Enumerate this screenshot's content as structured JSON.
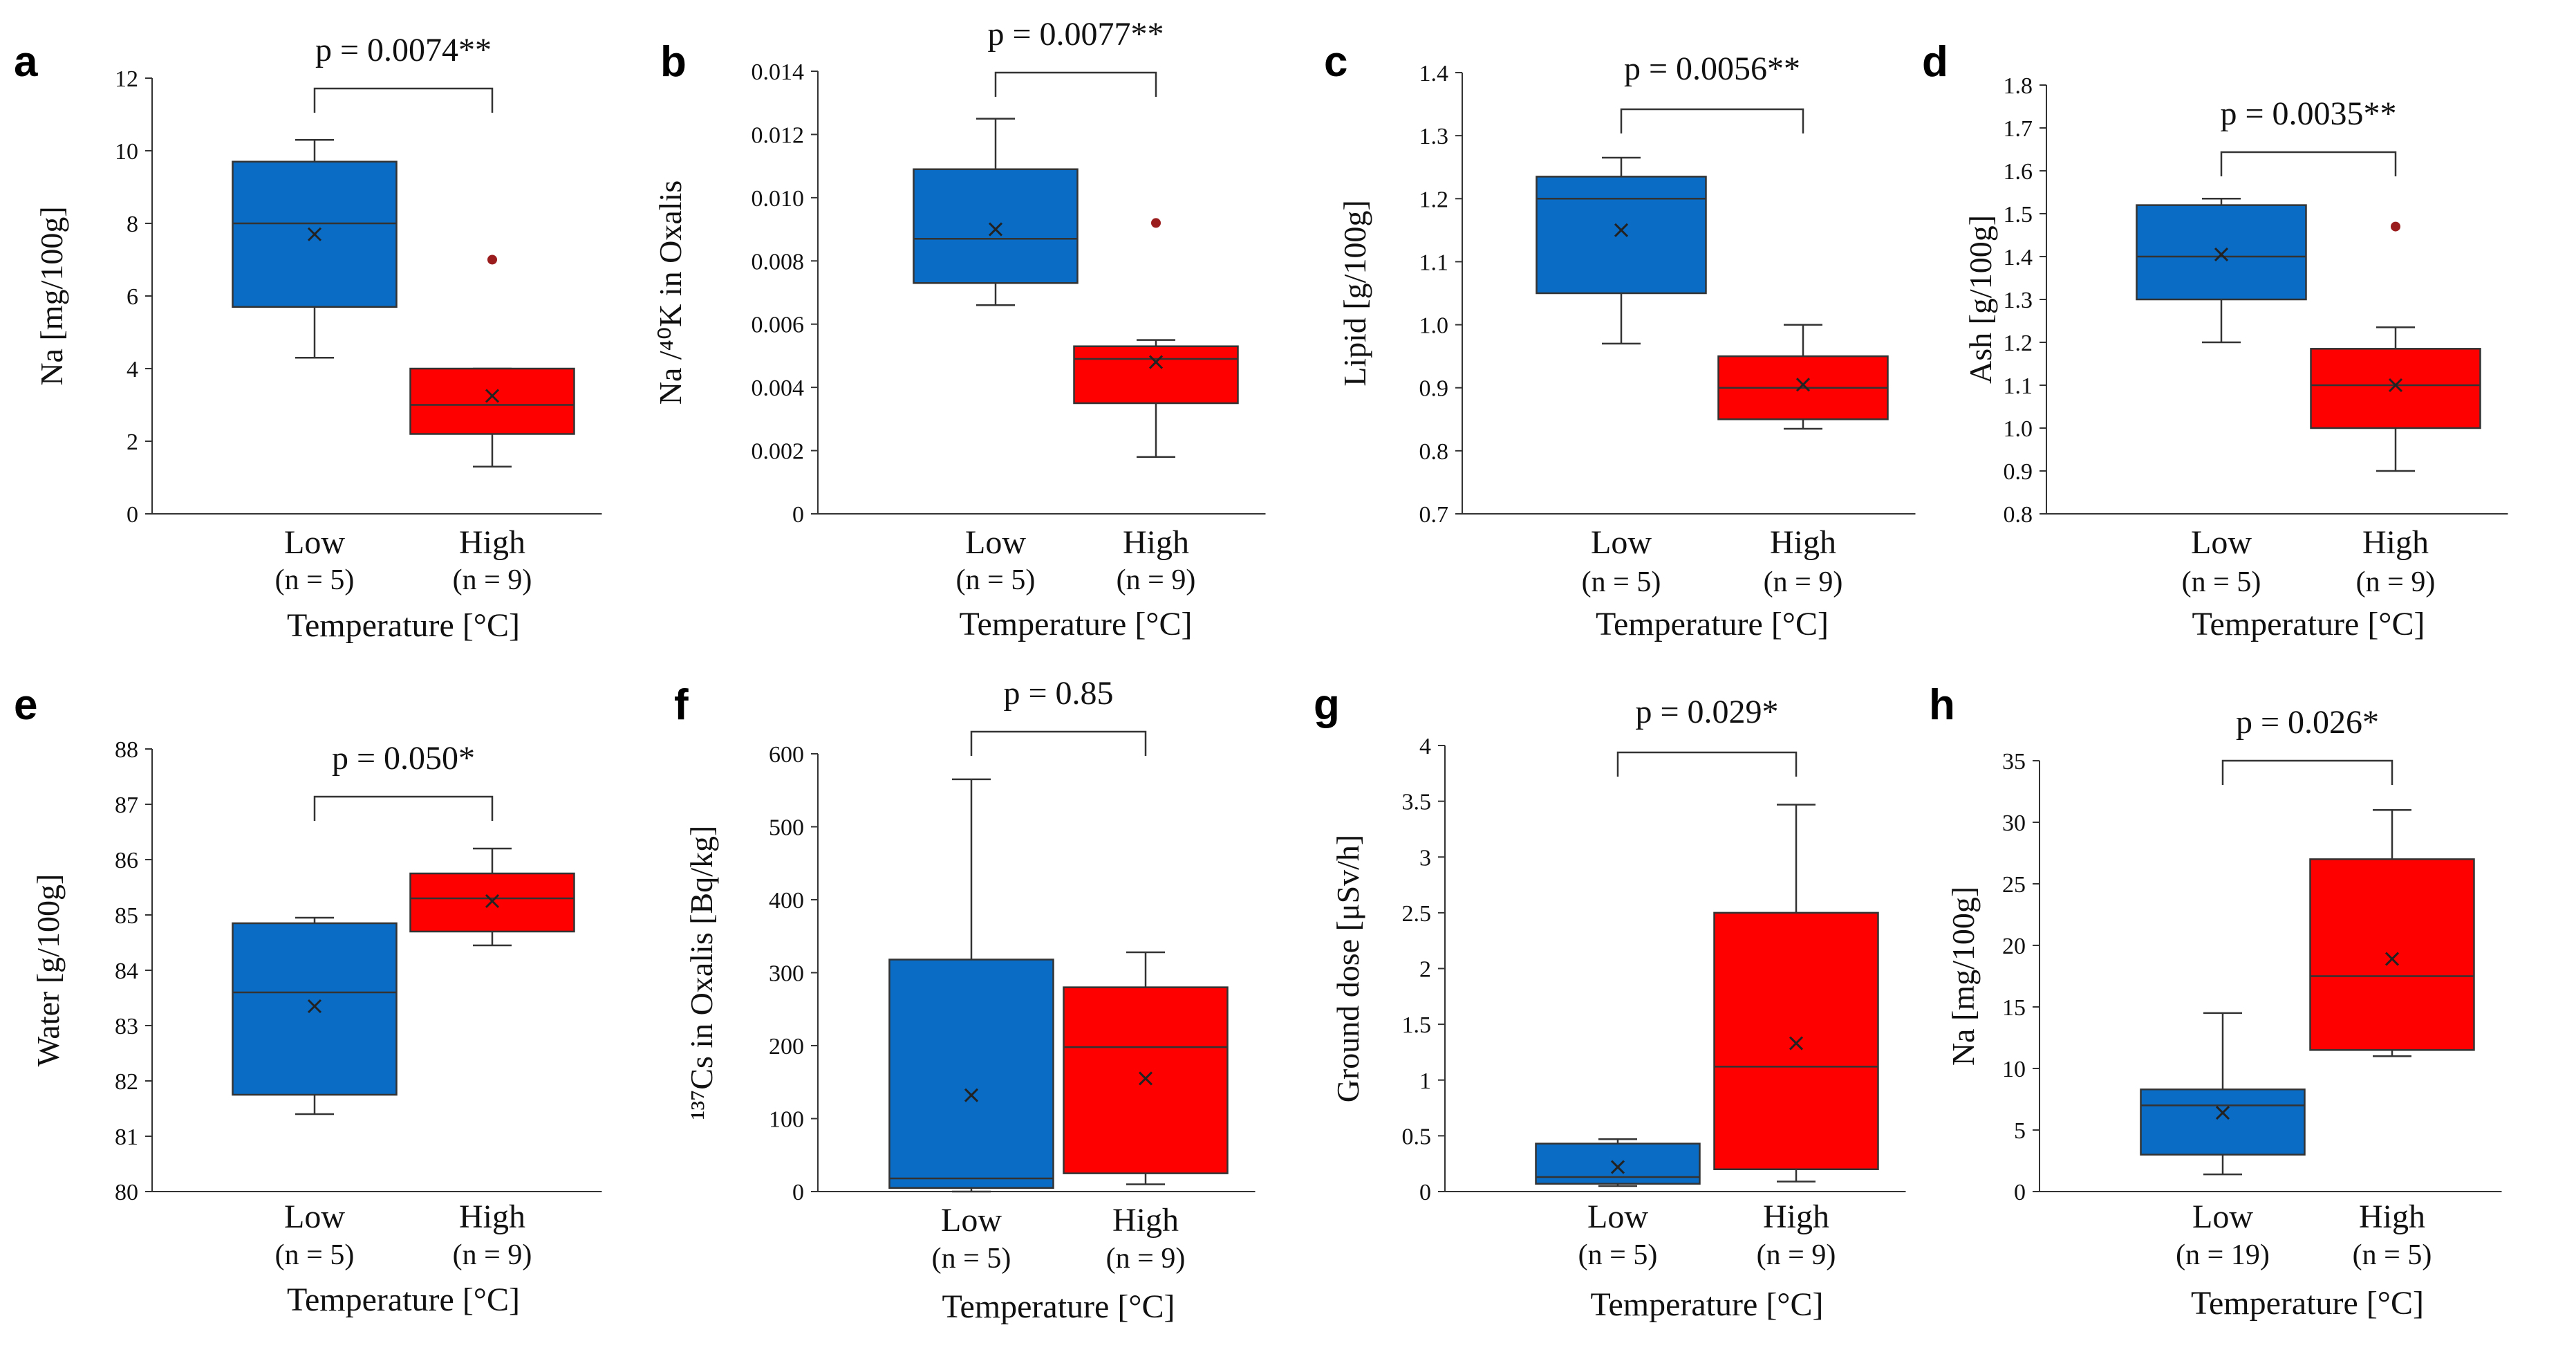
{
  "colors": {
    "low": "#0a6cc4",
    "high": "#ff0000",
    "outlier": "#9b1c1c"
  },
  "chart_data": [
    {
      "id": "a",
      "letter": "a",
      "type": "box",
      "ylabel_html": "Na [mg/100g]",
      "xlabel": "Temperature [°C]",
      "ylim": [
        0,
        12
      ],
      "yticks": [
        "0",
        "2",
        "4",
        "6",
        "8",
        "10",
        "12"
      ],
      "ytick_values": [
        0,
        2,
        4,
        6,
        8,
        10,
        12
      ],
      "p_value": "p = 0.0074**",
      "groups": [
        {
          "name": "Low",
          "n_label": "(n = 5)",
          "color": "low",
          "min": 4.3,
          "q1": 5.7,
          "median": 8.0,
          "q3": 9.7,
          "max": 10.3,
          "mean": 7.7,
          "outliers": []
        },
        {
          "name": "High",
          "n_label": "(n = 9)",
          "color": "high",
          "min": 1.3,
          "q1": 2.2,
          "median": 3.0,
          "q3": 4.0,
          "max": 4.0,
          "mean": 3.25,
          "outliers": [
            7.0
          ]
        }
      ]
    },
    {
      "id": "b",
      "letter": "b",
      "type": "box",
      "ylabel_html": "Na /⁴⁰K in Oxalis",
      "xlabel": "Temperature [°C]",
      "ylim": [
        0,
        0.014
      ],
      "yticks": [
        "0",
        "0.002",
        "0.004",
        "0.006",
        "0.008",
        "0.010",
        "0.012",
        "0.014"
      ],
      "ytick_values": [
        0,
        0.002,
        0.004,
        0.006,
        0.008,
        0.01,
        0.012,
        0.014
      ],
      "p_value": "p = 0.0077**",
      "groups": [
        {
          "name": "Low",
          "n_label": "(n = 5)",
          "color": "low",
          "min": 0.0066,
          "q1": 0.0073,
          "median": 0.0087,
          "q3": 0.0109,
          "max": 0.0125,
          "mean": 0.009,
          "outliers": []
        },
        {
          "name": "High",
          "n_label": "(n = 9)",
          "color": "high",
          "min": 0.0018,
          "q1": 0.0035,
          "median": 0.0049,
          "q3": 0.0053,
          "max": 0.0055,
          "mean": 0.0048,
          "outliers": [
            0.0092
          ]
        }
      ]
    },
    {
      "id": "c",
      "letter": "c",
      "type": "box",
      "ylabel_html": "Lipid [g/100g]",
      "xlabel": "Temperature [°C]",
      "ylim": [
        0.7,
        1.4
      ],
      "yticks": [
        "0.7",
        "0.8",
        "0.9",
        "1.0",
        "1.1",
        "1.2",
        "1.3",
        "1.4"
      ],
      "ytick_values": [
        0.7,
        0.8,
        0.9,
        1.0,
        1.1,
        1.2,
        1.3,
        1.4
      ],
      "p_value": "p = 0.0056**",
      "groups": [
        {
          "name": "Low",
          "n_label": "(n = 5)",
          "color": "low",
          "min": 0.97,
          "q1": 1.05,
          "median": 1.2,
          "q3": 1.235,
          "max": 1.265,
          "mean": 1.15,
          "outliers": []
        },
        {
          "name": "High",
          "n_label": "(n = 9)",
          "color": "high",
          "min": 0.835,
          "q1": 0.85,
          "median": 0.9,
          "q3": 0.95,
          "max": 1.0,
          "mean": 0.905,
          "outliers": []
        }
      ]
    },
    {
      "id": "d",
      "letter": "d",
      "type": "box",
      "ylabel_html": "Ash [g/100g]",
      "xlabel": "Temperature [°C]",
      "ylim": [
        0.8,
        1.8
      ],
      "yticks": [
        "0.8",
        "0.9",
        "1.0",
        "1.1",
        "1.2",
        "1.3",
        "1.4",
        "1.5",
        "1.6",
        "1.7",
        "1.8"
      ],
      "ytick_values": [
        0.8,
        0.9,
        1.0,
        1.1,
        1.2,
        1.3,
        1.4,
        1.5,
        1.6,
        1.7,
        1.8
      ],
      "p_value": "p = 0.0035**",
      "groups": [
        {
          "name": "Low",
          "n_label": "(n = 5)",
          "color": "low",
          "min": 1.2,
          "q1": 1.3,
          "median": 1.4,
          "q3": 1.52,
          "max": 1.535,
          "mean": 1.405,
          "outliers": []
        },
        {
          "name": "High",
          "n_label": "(n = 9)",
          "color": "high",
          "min": 0.9,
          "q1": 1.0,
          "median": 1.1,
          "q3": 1.185,
          "max": 1.235,
          "mean": 1.1,
          "outliers": [
            1.47
          ]
        }
      ]
    },
    {
      "id": "e",
      "letter": "e",
      "type": "box",
      "ylabel_html": "Water [g/100g]",
      "xlabel": "Temperature [°C]",
      "ylim": [
        80,
        88
      ],
      "yticks": [
        "80",
        "81",
        "82",
        "83",
        "84",
        "85",
        "86",
        "87",
        "88"
      ],
      "ytick_values": [
        80,
        81,
        82,
        83,
        84,
        85,
        86,
        87,
        88
      ],
      "p_value": "p = 0.050*",
      "groups": [
        {
          "name": "Low",
          "n_label": "(n = 5)",
          "color": "low",
          "min": 81.4,
          "q1": 81.75,
          "median": 83.6,
          "q3": 84.85,
          "max": 84.95,
          "mean": 83.35,
          "outliers": []
        },
        {
          "name": "High",
          "n_label": "(n = 9)",
          "color": "high",
          "min": 84.45,
          "q1": 84.7,
          "median": 85.3,
          "q3": 85.75,
          "max": 86.2,
          "mean": 85.25,
          "outliers": []
        }
      ]
    },
    {
      "id": "f",
      "letter": "f",
      "type": "box",
      "ylabel_html": "¹³⁷Cs in Oxalis [Bq/kg]",
      "xlabel": "Temperature [°C]",
      "ylim": [
        0,
        600
      ],
      "yticks": [
        "0",
        "100",
        "200",
        "300",
        "400",
        "500",
        "600"
      ],
      "ytick_values": [
        0,
        100,
        200,
        300,
        400,
        500,
        600
      ],
      "p_value": "p = 0.85",
      "groups": [
        {
          "name": "Low",
          "n_label": "(n = 5)",
          "color": "low",
          "min": 0,
          "q1": 5,
          "median": 18,
          "q3": 318,
          "max": 565,
          "mean": 132,
          "outliers": []
        },
        {
          "name": "High",
          "n_label": "(n = 9)",
          "color": "high",
          "min": 10,
          "q1": 25,
          "median": 198,
          "q3": 280,
          "max": 328,
          "mean": 155,
          "outliers": []
        }
      ]
    },
    {
      "id": "g",
      "letter": "g",
      "type": "box",
      "ylabel_html": "Ground dose [μSv/h]",
      "xlabel": "Temperature [°C]",
      "ylim": [
        0,
        4
      ],
      "yticks": [
        "0",
        "0.5",
        "1",
        "1.5",
        "2",
        "2.5",
        "3",
        "3.5",
        "4"
      ],
      "ytick_values": [
        0,
        0.5,
        1,
        1.5,
        2,
        2.5,
        3,
        3.5,
        4
      ],
      "p_value": "p = 0.029*",
      "groups": [
        {
          "name": "Low",
          "n_label": "(n = 5)",
          "color": "low",
          "min": 0.05,
          "q1": 0.07,
          "median": 0.13,
          "q3": 0.43,
          "max": 0.47,
          "mean": 0.22,
          "outliers": []
        },
        {
          "name": "High",
          "n_label": "(n = 9)",
          "color": "high",
          "min": 0.09,
          "q1": 0.2,
          "median": 1.12,
          "q3": 2.5,
          "max": 3.47,
          "mean": 1.33,
          "outliers": []
        }
      ]
    },
    {
      "id": "h",
      "letter": "h",
      "type": "box",
      "ylabel_html": "Na [mg/100g]",
      "xlabel": "Temperature [°C]",
      "ylim": [
        0,
        35
      ],
      "yticks": [
        "0",
        "5",
        "10",
        "15",
        "20",
        "25",
        "30",
        "35"
      ],
      "ytick_values": [
        0,
        5,
        10,
        15,
        20,
        25,
        30,
        35
      ],
      "p_value": "p = 0.026*",
      "groups": [
        {
          "name": "Low",
          "n_label": "(n = 19)",
          "color": "low",
          "min": 1.4,
          "q1": 3.0,
          "median": 7.0,
          "q3": 8.3,
          "max": 14.5,
          "mean": 6.4,
          "outliers": []
        },
        {
          "name": "High",
          "n_label": "(n = 5)",
          "color": "high",
          "min": 11.0,
          "q1": 11.5,
          "median": 17.5,
          "q3": 27.0,
          "max": 31.0,
          "mean": 18.9,
          "outliers": []
        }
      ]
    }
  ]
}
